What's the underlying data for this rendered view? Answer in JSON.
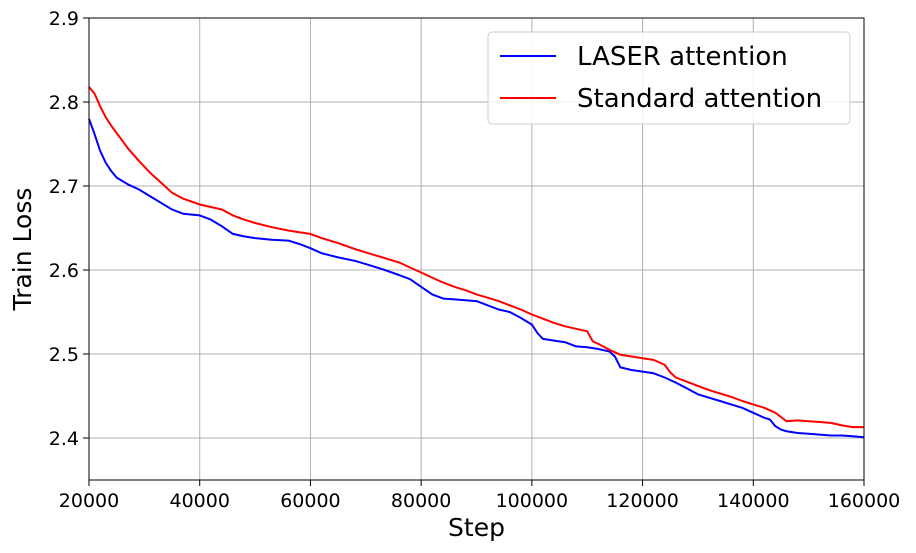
{
  "chart_data": {
    "type": "line",
    "xlabel": "Step",
    "ylabel": "Train Loss",
    "xlim": [
      20000,
      160000
    ],
    "ylim": [
      2.35,
      2.9
    ],
    "x_ticks": [
      20000,
      40000,
      60000,
      80000,
      100000,
      120000,
      140000,
      160000
    ],
    "x_tick_labels": [
      "20000",
      "40000",
      "60000",
      "80000",
      "100000",
      "120000",
      "140000",
      "160000"
    ],
    "y_ticks": [
      2.4,
      2.5,
      2.6,
      2.7,
      2.8,
      2.9
    ],
    "y_tick_labels": [
      "2.4",
      "2.5",
      "2.6",
      "2.7",
      "2.8",
      "2.9"
    ],
    "grid": true,
    "legend_position": "top-right",
    "series": [
      {
        "name": "LASER attention",
        "color": "#0000ff",
        "x": [
          20000,
          21000,
          22000,
          23000,
          24000,
          25000,
          27000,
          29000,
          31000,
          33000,
          35000,
          37000,
          40000,
          42000,
          44000,
          46000,
          48000,
          50000,
          53000,
          56000,
          58000,
          60000,
          62000,
          65000,
          68000,
          70000,
          73000,
          76000,
          78000,
          80000,
          82000,
          84000,
          86000,
          88000,
          90000,
          92000,
          94000,
          96000,
          98000,
          100000,
          101000,
          102000,
          104000,
          106000,
          108000,
          110000,
          112000,
          114000,
          115000,
          116000,
          118000,
          120000,
          122000,
          124000,
          126000,
          128000,
          130000,
          132000,
          134000,
          136000,
          138000,
          140000,
          142000,
          143000,
          144000,
          145000,
          146000,
          148000,
          150000,
          152000,
          154000,
          156000,
          158000,
          160000
        ],
        "values": [
          2.78,
          2.762,
          2.742,
          2.728,
          2.718,
          2.71,
          2.702,
          2.696,
          2.688,
          2.68,
          2.672,
          2.667,
          2.665,
          2.66,
          2.652,
          2.643,
          2.64,
          2.638,
          2.636,
          2.635,
          2.631,
          2.626,
          2.62,
          2.615,
          2.611,
          2.607,
          2.601,
          2.594,
          2.589,
          2.58,
          2.571,
          2.566,
          2.565,
          2.564,
          2.563,
          2.558,
          2.553,
          2.55,
          2.543,
          2.535,
          2.525,
          2.518,
          2.516,
          2.514,
          2.509,
          2.508,
          2.506,
          2.503,
          2.497,
          2.484,
          2.481,
          2.479,
          2.477,
          2.472,
          2.466,
          2.459,
          2.452,
          2.448,
          2.444,
          2.44,
          2.436,
          2.43,
          2.424,
          2.422,
          2.414,
          2.41,
          2.408,
          2.406,
          2.405,
          2.404,
          2.403,
          2.403,
          2.402,
          2.401
        ]
      },
      {
        "name": "Standard attention",
        "color": "#ff0000",
        "x": [
          20000,
          21000,
          22000,
          23000,
          24000,
          25000,
          27000,
          29000,
          31000,
          33000,
          35000,
          37000,
          40000,
          42000,
          44000,
          46000,
          48000,
          50000,
          53000,
          56000,
          58000,
          60000,
          62000,
          65000,
          68000,
          70000,
          73000,
          76000,
          78000,
          80000,
          82000,
          84000,
          86000,
          88000,
          90000,
          92000,
          94000,
          96000,
          98000,
          100000,
          102000,
          104000,
          106000,
          108000,
          110000,
          111000,
          112000,
          114000,
          116000,
          118000,
          120000,
          122000,
          124000,
          125000,
          126000,
          128000,
          130000,
          132000,
          134000,
          136000,
          138000,
          140000,
          142000,
          144000,
          145000,
          146000,
          148000,
          150000,
          152000,
          154000,
          156000,
          158000,
          160000
        ],
        "values": [
          2.818,
          2.81,
          2.795,
          2.782,
          2.772,
          2.763,
          2.745,
          2.73,
          2.716,
          2.704,
          2.692,
          2.685,
          2.678,
          2.675,
          2.672,
          2.665,
          2.66,
          2.656,
          2.651,
          2.647,
          2.645,
          2.643,
          2.638,
          2.632,
          2.625,
          2.621,
          2.615,
          2.609,
          2.603,
          2.597,
          2.591,
          2.585,
          2.58,
          2.576,
          2.571,
          2.567,
          2.563,
          2.558,
          2.553,
          2.547,
          2.542,
          2.537,
          2.533,
          2.53,
          2.527,
          2.515,
          2.512,
          2.505,
          2.499,
          2.497,
          2.495,
          2.493,
          2.487,
          2.478,
          2.472,
          2.467,
          2.462,
          2.457,
          2.453,
          2.449,
          2.444,
          2.44,
          2.436,
          2.43,
          2.425,
          2.42,
          2.421,
          2.42,
          2.419,
          2.418,
          2.415,
          2.413,
          2.413
        ]
      }
    ]
  }
}
